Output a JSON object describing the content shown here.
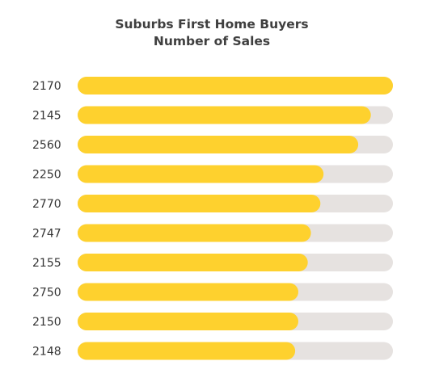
{
  "chart_data": {
    "type": "bar",
    "orientation": "horizontal",
    "title": "Suburbs First Home Buyers",
    "subtitle": "Number of Sales",
    "categories": [
      "2170",
      "2145",
      "2560",
      "2250",
      "2770",
      "2747",
      "2155",
      "2750",
      "2150",
      "2148"
    ],
    "values": [
      100,
      93,
      89,
      78,
      77,
      74,
      73,
      70,
      70,
      69
    ],
    "value_unit": "percent of longest bar",
    "xlim": [
      0,
      100
    ],
    "grid": false,
    "legend": "none",
    "colors": {
      "bar": "#fed12e",
      "track": "#e6e2e0",
      "title": "#3f3f3f",
      "label": "#333333"
    }
  }
}
